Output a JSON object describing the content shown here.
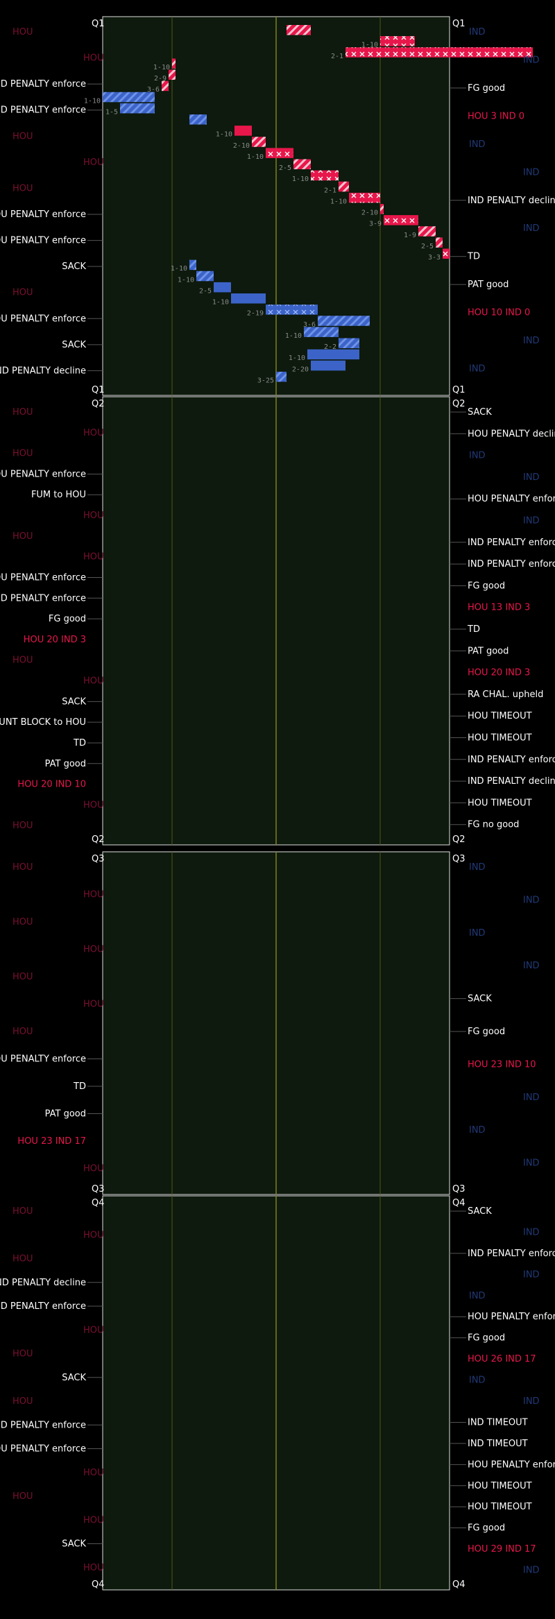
{
  "chart_data": {
    "type": "drive-chart",
    "field_color": "#0d1a0d",
    "home_team": {
      "abbr": "IND",
      "color": "#e8174b"
    },
    "away_team": {
      "abbr": "HOU",
      "color": "#3c64c8"
    },
    "quarters": [
      {
        "label": "Q1",
        "side_left": [
          {
            "text": "HOU",
            "dim": true
          },
          {
            "text": "HOU",
            "dim": true
          },
          {
            "text": "IND PENALTY enforce"
          },
          {
            "text": "IND PENALTY enforce"
          },
          {
            "text": "HOU",
            "dim": true
          },
          {
            "text": "HOU",
            "dim": true
          },
          {
            "text": "HOU",
            "dim": true
          },
          {
            "text": "HOU PENALTY enforce"
          },
          {
            "text": "HOU PENALTY enforce"
          },
          {
            "text": "SACK"
          },
          {
            "text": "HOU",
            "dim": true
          },
          {
            "text": "HOU PENALTY enforce"
          },
          {
            "text": "SACK"
          },
          {
            "text": "IND PENALTY decline"
          }
        ],
        "side_right": [
          {
            "text": "IND",
            "dim": true
          },
          {
            "text": "IND",
            "dim": true
          },
          {
            "text": "FG good"
          },
          {
            "text": "HOU 3 IND 0",
            "score": true
          },
          {
            "text": "IND",
            "dim": true
          },
          {
            "text": "IND",
            "dim": true
          },
          {
            "text": "IND PENALTY decline"
          },
          {
            "text": "IND",
            "dim": true
          },
          {
            "text": "TD"
          },
          {
            "text": "PAT good"
          },
          {
            "text": "HOU 10 IND 0",
            "score": true
          },
          {
            "text": "IND",
            "dim": true
          },
          {
            "text": "IND",
            "dim": true
          }
        ],
        "plays": [
          {
            "team": "IND",
            "start": 60,
            "yds": -7,
            "dd": "",
            "pat": "stripe"
          },
          {
            "team": "IND",
            "start": 80,
            "yds": 10,
            "dd": "1-10",
            "pat": "x"
          },
          {
            "team": "IND",
            "start": 70,
            "yds": 54,
            "dd": "2-1",
            "pat": "x"
          },
          {
            "team": "IND",
            "start": 20,
            "yds": 1,
            "dd": "1-10",
            "pat": "stripe"
          },
          {
            "team": "IND",
            "start": 19,
            "yds": 2,
            "dd": "2-9",
            "pat": "stripe"
          },
          {
            "team": "IND",
            "start": 17,
            "yds": 2,
            "dd": "3-6",
            "pat": "stripe"
          },
          {
            "team": "HOU",
            "start": 15,
            "yds": -15,
            "dd": "1-10",
            "pat": "stripe"
          },
          {
            "team": "HOU",
            "start": 15,
            "yds": -10,
            "dd": "1-5",
            "pat": "stripe"
          },
          {
            "team": "HOU",
            "start": 25,
            "yds": 5,
            "dd": "",
            "pat": "stripe"
          },
          {
            "team": "IND",
            "start": 38,
            "yds": 5,
            "dd": "1-10",
            "pat": "solid"
          },
          {
            "team": "IND",
            "start": 43,
            "yds": 4,
            "dd": "2-10",
            "pat": "stripe"
          },
          {
            "team": "IND",
            "start": 47,
            "yds": 8,
            "dd": "1-10",
            "pat": "x"
          },
          {
            "team": "IND",
            "start": 55,
            "yds": 5,
            "dd": "2-5",
            "pat": "stripe"
          },
          {
            "team": "IND",
            "start": 60,
            "yds": 8,
            "dd": "1-10",
            "pat": "x"
          },
          {
            "team": "IND",
            "start": 68,
            "yds": 3,
            "dd": "2-1",
            "pat": "stripe"
          },
          {
            "team": "IND",
            "start": 71,
            "yds": 9,
            "dd": "1-10",
            "pat": "x"
          },
          {
            "team": "IND",
            "start": 80,
            "yds": 1,
            "dd": "2-10",
            "pat": "stripe"
          },
          {
            "team": "IND",
            "start": 81,
            "yds": 10,
            "dd": "3-9",
            "pat": "x"
          },
          {
            "team": "IND",
            "start": 91,
            "yds": 5,
            "dd": "1-9",
            "pat": "stripe"
          },
          {
            "team": "IND",
            "start": 96,
            "yds": 2,
            "dd": "2-5",
            "pat": "stripe"
          },
          {
            "team": "IND",
            "start": 98,
            "yds": 2,
            "dd": "3-3",
            "pat": "x"
          },
          {
            "team": "HOU",
            "start": 25,
            "yds": 2,
            "dd": "1-10",
            "pat": "stripe"
          },
          {
            "team": "HOU",
            "start": 27,
            "yds": 5,
            "dd": "1-10",
            "pat": "stripe"
          },
          {
            "team": "HOU",
            "start": 32,
            "yds": 5,
            "dd": "2-5",
            "pat": "solid"
          },
          {
            "team": "HOU",
            "start": 37,
            "yds": 10,
            "dd": "1-10",
            "pat": "solid"
          },
          {
            "team": "HOU",
            "start": 47,
            "yds": 15,
            "dd": "2-19",
            "pat": "x"
          },
          {
            "team": "HOU",
            "start": 62,
            "yds": 15,
            "dd": "3-6",
            "pat": "stripe"
          },
          {
            "team": "HOU",
            "start": 58,
            "yds": 10,
            "dd": "1-10",
            "pat": "stripe"
          },
          {
            "team": "HOU",
            "start": 68,
            "yds": 6,
            "dd": "2-2",
            "pat": "stripe"
          },
          {
            "team": "HOU",
            "start": 74,
            "yds": -15,
            "dd": "1-10",
            "pat": "solid"
          },
          {
            "team": "HOU",
            "start": 60,
            "yds": 10,
            "dd": "2-20",
            "pat": "solid"
          },
          {
            "team": "HOU",
            "start": 50,
            "yds": 3,
            "dd": "3-25",
            "pat": "stripe"
          }
        ]
      },
      {
        "label": "Q2",
        "side_left": [
          {
            "text": "HOU",
            "dim": true
          },
          {
            "text": "HOU",
            "dim": true
          },
          {
            "text": "HOU",
            "dim": true
          },
          {
            "text": "HOU PENALTY enforce"
          },
          {
            "text": "FUM to HOU"
          },
          {
            "text": "HOU",
            "dim": true
          },
          {
            "text": "HOU",
            "dim": true
          },
          {
            "text": "HOU",
            "dim": true
          },
          {
            "text": "HOU PENALTY enforce"
          },
          {
            "text": "IND PENALTY enforce"
          },
          {
            "text": "FG good"
          },
          {
            "text": "HOU 20 IND 3",
            "score": true
          },
          {
            "text": "HOU",
            "dim": true
          },
          {
            "text": "HOU",
            "dim": true
          },
          {
            "text": "SACK"
          },
          {
            "text": "PUNT BLOCK to HOU"
          },
          {
            "text": "TD"
          },
          {
            "text": "PAT good"
          },
          {
            "text": "HOU 20 IND 10",
            "score": true
          },
          {
            "text": "HOU",
            "dim": true
          },
          {
            "text": "HOU",
            "dim": true
          }
        ],
        "side_right": [
          {
            "text": "SACK"
          },
          {
            "text": "HOU PENALTY decline"
          },
          {
            "text": "IND",
            "dim": true
          },
          {
            "text": "IND",
            "dim": true
          },
          {
            "text": "HOU PENALTY enforce"
          },
          {
            "text": "IND",
            "dim": true
          },
          {
            "text": "IND PENALTY enforce"
          },
          {
            "text": "IND PENALTY enforce"
          },
          {
            "text": "FG good"
          },
          {
            "text": "HOU 13 IND 3",
            "score": true
          },
          {
            "text": "TD"
          },
          {
            "text": "PAT good"
          },
          {
            "text": "HOU 20 IND 3",
            "score": true
          },
          {
            "text": "RA CHAL. upheld"
          },
          {
            "text": "HOU TIMEOUT"
          },
          {
            "text": "HOU TIMEOUT"
          },
          {
            "text": "IND PENALTY enforce"
          },
          {
            "text": "IND PENALTY decline"
          },
          {
            "text": "HOU TIMEOUT"
          },
          {
            "text": "FG no good"
          }
        ]
      },
      {
        "label": "Q3",
        "side_left": [
          {
            "text": "HOU",
            "dim": true
          },
          {
            "text": "HOU",
            "dim": true
          },
          {
            "text": "HOU",
            "dim": true
          },
          {
            "text": "HOU",
            "dim": true
          },
          {
            "text": "HOU",
            "dim": true
          },
          {
            "text": "HOU",
            "dim": true
          },
          {
            "text": "HOU",
            "dim": true
          },
          {
            "text": "HOU PENALTY enforce"
          },
          {
            "text": "TD"
          },
          {
            "text": "PAT good"
          },
          {
            "text": "HOU 23 IND 17",
            "score": true
          },
          {
            "text": "HOU",
            "dim": true
          }
        ],
        "side_right": [
          {
            "text": "IND",
            "dim": true
          },
          {
            "text": "IND",
            "dim": true
          },
          {
            "text": "IND",
            "dim": true
          },
          {
            "text": "IND",
            "dim": true
          },
          {
            "text": "SACK"
          },
          {
            "text": "FG good"
          },
          {
            "text": "HOU 23 IND 10",
            "score": true
          },
          {
            "text": "IND",
            "dim": true
          },
          {
            "text": "IND",
            "dim": true
          },
          {
            "text": "IND",
            "dim": true
          }
        ]
      },
      {
        "label": "Q4",
        "side_left": [
          {
            "text": "HOU",
            "dim": true
          },
          {
            "text": "HOU",
            "dim": true
          },
          {
            "text": "HOU",
            "dim": true
          },
          {
            "text": "IND PENALTY decline"
          },
          {
            "text": "IND PENALTY enforce"
          },
          {
            "text": "HOU",
            "dim": true
          },
          {
            "text": "HOU",
            "dim": true
          },
          {
            "text": "SACK"
          },
          {
            "text": "HOU",
            "dim": true
          },
          {
            "text": "IND PENALTY enforce"
          },
          {
            "text": "HOU PENALTY enforce"
          },
          {
            "text": "HOU",
            "dim": true
          },
          {
            "text": "HOU",
            "dim": true
          },
          {
            "text": "HOU",
            "dim": true
          },
          {
            "text": "SACK"
          },
          {
            "text": "HOU",
            "dim": true
          }
        ],
        "side_right": [
          {
            "text": "SACK"
          },
          {
            "text": "IND",
            "dim": true
          },
          {
            "text": "IND PENALTY enforce"
          },
          {
            "text": "IND",
            "dim": true
          },
          {
            "text": "IND",
            "dim": true
          },
          {
            "text": "HOU PENALTY enforce"
          },
          {
            "text": "FG good"
          },
          {
            "text": "HOU 26 IND 17",
            "score": true
          },
          {
            "text": "IND",
            "dim": true
          },
          {
            "text": "IND",
            "dim": true
          },
          {
            "text": "IND TIMEOUT"
          },
          {
            "text": "IND TIMEOUT"
          },
          {
            "text": "HOU PENALTY enforce"
          },
          {
            "text": "HOU TIMEOUT"
          },
          {
            "text": "HOU TIMEOUT"
          },
          {
            "text": "FG good"
          },
          {
            "text": "HOU 29 IND 17",
            "score": true
          },
          {
            "text": "IND",
            "dim": true
          }
        ]
      }
    ]
  }
}
